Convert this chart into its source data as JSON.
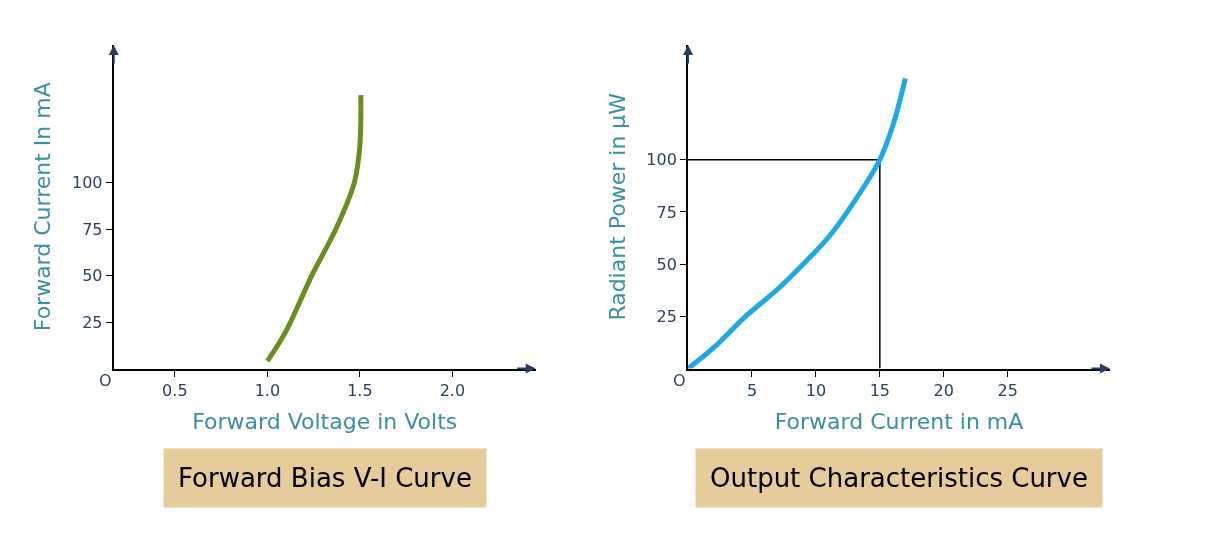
{
  "chart_data": [
    {
      "type": "line",
      "title": "Forward Bias V-I Curve",
      "xlabel": "Forward Voltage in Volts",
      "ylabel": "Forward Current In mA",
      "xlim": [
        0.17,
        2.45
      ],
      "ylim": [
        0,
        174
      ],
      "xticks": [
        0.5,
        {
          "value": 1,
          "label": "1.0"
        },
        1.5,
        {
          "value": 2,
          "label": "2.0"
        }
      ],
      "yticks": [
        25,
        50,
        75,
        100
      ],
      "annotations": [
        "O"
      ],
      "series": [
        {
          "color": "#6b8e23",
          "x": [
            1.0,
            1.1,
            1.24,
            1.37,
            1.47,
            1.5,
            1.505
          ],
          "values": [
            4,
            20,
            50,
            75,
            100,
            120,
            147
          ]
        }
      ]
    },
    {
      "type": "line",
      "title": "Output Characteristics Curve",
      "xlabel": "Forward Current in mA",
      "ylabel": "Radiant Power in μW",
      "xlim": [
        0,
        33
      ],
      "ylim": [
        0,
        155
      ],
      "xticks": [
        5,
        10,
        15,
        20,
        25
      ],
      "yticks": [
        25,
        50,
        75,
        100
      ],
      "annotations": [
        "O"
      ],
      "series": [
        {
          "color": "#000000",
          "x": [
            0,
            15,
            15
          ],
          "values": [
            100,
            100,
            0
          ]
        },
        {
          "color": "#1ca9e6",
          "x": [
            0,
            2,
            4.5,
            7,
            9,
            11,
            13,
            15,
            16,
            17
          ],
          "values": [
            0,
            10,
            25,
            38,
            50,
            63,
            80,
            100,
            116,
            139
          ]
        }
      ]
    }
  ]
}
